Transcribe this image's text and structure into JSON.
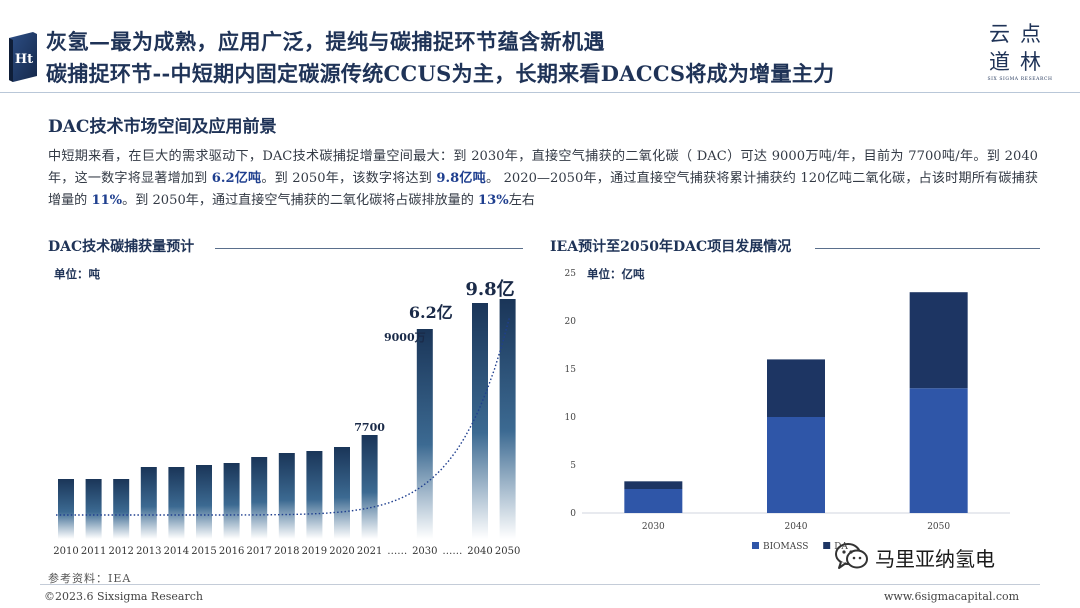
{
  "header": {
    "title_line1": "灰氢—最为成熟，应用广泛，提纯与碳捕捉环节蕴含新机遇",
    "title_line2": "碳捕捉环节--中短期内固定碳源传统CCUS为主，长期来看DACCS将成为增量主力",
    "badge_glyph": "Ht",
    "brand_line1": "云点",
    "brand_line2": "道林",
    "brand_sub": "SIX SIGMA RESEARCH"
  },
  "section": {
    "title": "DAC技术市场空间及应用前景",
    "paragraph": [
      {
        "text": "中短期来看，在巨大的需求驱动下，DAC技术碳捕捉增量空间最大：到 2030年，直接空气捕获的二氧化碳（ DAC）可达 9000万吨/年，目前为 7700吨/年。到 2040年，这一数字将显著增加到 ",
        "highlight": false
      },
      {
        "text": "6.2亿吨",
        "highlight": true
      },
      {
        "text": "。到 2050年，该数字将达到 ",
        "highlight": false
      },
      {
        "text": "9.8亿吨",
        "highlight": true
      },
      {
        "text": "。 2020—2050年，通过直接空气捕获将累计捕获约 120亿吨二氧化碳，占该时期所有碳捕获增量的 ",
        "highlight": false
      },
      {
        "text": "11%",
        "highlight": true
      },
      {
        "text": "。到 2050年，通过直接空气捕获的二氧化碳将占碳排放量的 ",
        "highlight": false
      },
      {
        "text": "13%",
        "highlight": true
      },
      {
        "text": "左右",
        "highlight": false
      }
    ]
  },
  "chart_left_meta": {
    "title": "DAC技术碳捕获量预计",
    "unit": "单位：吨"
  },
  "chart_right_meta": {
    "title": "IEA预计至2050年DAC项目发展情况",
    "unit": "单位：亿吨"
  },
  "chart_data": [
    {
      "type": "bar",
      "title": "DAC技术碳捕获量预计",
      "unit": "单位：吨",
      "categories": [
        "2010",
        "2011",
        "2012",
        "2013",
        "2014",
        "2015",
        "2016",
        "2017",
        "2018",
        "2019",
        "2020",
        "2021",
        "……",
        "2030",
        "……",
        "2040",
        "2050"
      ],
      "values": [
        3.0,
        3.0,
        3.0,
        3.6,
        3.6,
        3.7,
        3.8,
        4.1,
        4.3,
        4.4,
        4.6,
        5.2,
        null,
        10.5,
        null,
        11.8,
        12.0
      ],
      "annotations": [
        {
          "category": "2021",
          "text": "7700"
        },
        {
          "category": "2030",
          "text": "9000万"
        },
        {
          "category": "2030",
          "text": "6.2亿"
        },
        {
          "category": "2040",
          "text": "9.8亿"
        }
      ],
      "trend": "exponential-dotted",
      "note": "Axis is broken and not to scale; values are relative bar heights"
    },
    {
      "type": "bar",
      "stacked": true,
      "title": "IEA预计至2050年DAC项目发展情况",
      "unit": "单位：亿吨",
      "categories": [
        "2030",
        "2040",
        "2050"
      ],
      "series": [
        {
          "name": "BIOMASS",
          "values": [
            2.5,
            10.0,
            13.0
          ]
        },
        {
          "name": "DA",
          "values": [
            0.8,
            6.0,
            10.0
          ]
        }
      ],
      "ylim": [
        0,
        25
      ],
      "yticks": [
        0,
        5,
        10,
        15,
        20,
        25
      ],
      "legend": "bottom"
    }
  ],
  "colors": {
    "navy": "#1f3357",
    "bar_dark": "#1a3558",
    "biomass": "#2f56a8",
    "da": "#1d3563"
  },
  "footer": {
    "source": "参考资料：IEA",
    "copyright": "©2023.6 Sixsigma Research",
    "website": "www.6sigmacapital.com",
    "wechat": "马里亚纳氢电"
  }
}
